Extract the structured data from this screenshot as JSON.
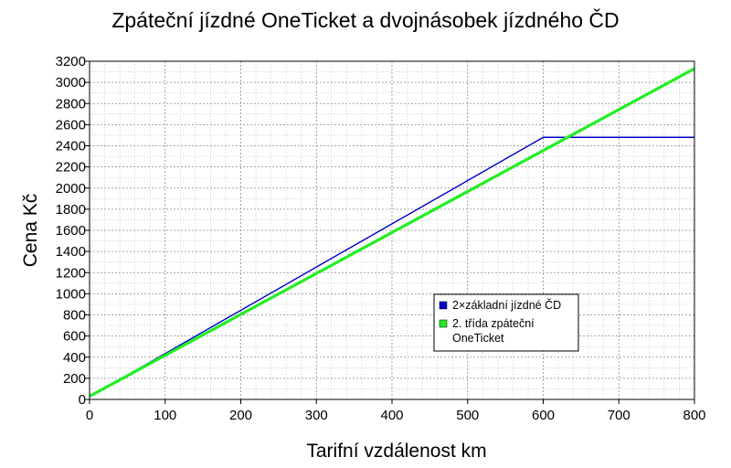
{
  "chart_data": {
    "type": "line",
    "title": "Zpáteční jízdné OneTicket a dvojnásobek jízdného ČD",
    "xlabel": "Tarifní vzdálenost km",
    "ylabel": "Cena Kč",
    "xlim": [
      0,
      800
    ],
    "ylim": [
      0,
      3200
    ],
    "x_ticks": [
      0,
      100,
      200,
      300,
      400,
      500,
      600,
      700,
      800
    ],
    "y_ticks": [
      0,
      200,
      400,
      600,
      800,
      1000,
      1200,
      1400,
      1600,
      1800,
      2000,
      2200,
      2400,
      2600,
      2800,
      3000,
      3200
    ],
    "grid": true,
    "legend_position": "lower-right",
    "series": [
      {
        "name": "2×základní jízdné ČD",
        "color": "#0000cc",
        "points": [
          [
            0,
            25
          ],
          [
            600,
            2480
          ],
          [
            800,
            2480
          ]
        ]
      },
      {
        "name": "2. třída zpáteční\nOneTicket",
        "color": "#22ee22",
        "points": [
          [
            0,
            30
          ],
          [
            800,
            3130
          ]
        ]
      }
    ]
  }
}
